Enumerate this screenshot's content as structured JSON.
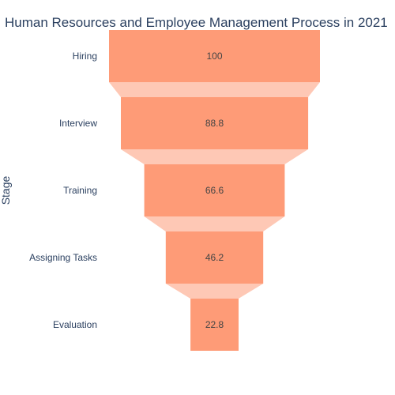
{
  "chart_data": {
    "type": "funnel",
    "title": "Human Resources and Employee Management Process in 2021",
    "ylabel": "Stage",
    "xlabel": "",
    "categories": [
      "Hiring",
      "Interview",
      "Training",
      "Assigning Tasks",
      "Evaluation"
    ],
    "values": [
      100,
      88.8,
      66.6,
      46.2,
      22.8
    ],
    "value_labels": [
      "100",
      "88.8",
      "66.6",
      "46.2",
      "22.8"
    ],
    "colors": {
      "bar": "#fe9b77",
      "connector": "#fec8b5",
      "text": "#2a3f5f",
      "label": "#444444"
    },
    "grid": false,
    "legend": "none"
  }
}
